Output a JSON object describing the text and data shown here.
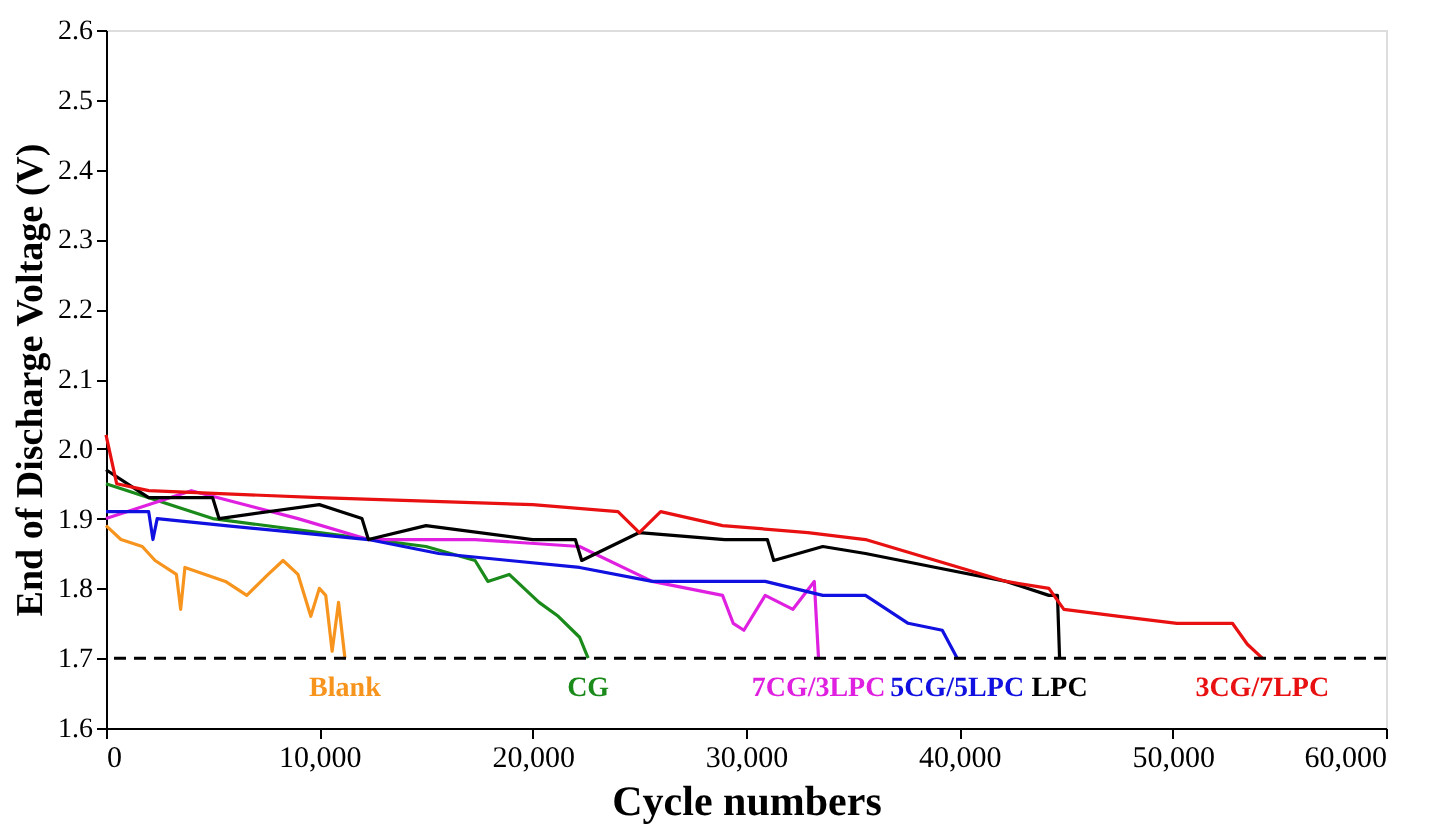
{
  "chart_data": {
    "type": "line",
    "xlabel": "Cycle numbers",
    "ylabel": "End of Discharge Voltage (V)",
    "xlim": [
      0,
      60000
    ],
    "ylim": [
      1.6,
      2.6
    ],
    "xticks": [
      0,
      {
        "value": 10000,
        "label": "10,000"
      },
      {
        "value": 20000,
        "label": "20,000"
      },
      {
        "value": 30000,
        "label": "30,000"
      },
      {
        "value": 40000,
        "label": "40,000"
      },
      {
        "value": 50000,
        "label": "50,000"
      },
      {
        "value": 60000,
        "label": "60,000"
      }
    ],
    "yticks": [
      {
        "value": 1.6,
        "label": "1.6"
      },
      {
        "value": 1.7,
        "label": "1.7"
      },
      {
        "value": 1.8,
        "label": "1.8"
      },
      {
        "value": 1.9,
        "label": "1.9"
      },
      {
        "value": 2.0,
        "label": "2.0"
      },
      {
        "value": 2.1,
        "label": "2.1"
      },
      {
        "value": 2.2,
        "label": "2.2"
      },
      {
        "value": 2.3,
        "label": "2.3"
      },
      {
        "value": 2.4,
        "label": "2.4"
      },
      {
        "value": 2.5,
        "label": "2.5"
      },
      {
        "value": 2.6,
        "label": "2.6"
      }
    ],
    "grid": false,
    "legend": false,
    "marker": "none",
    "line_style": "solid",
    "ref_lines": [
      {
        "axis": "y",
        "value": 1.7,
        "label": null,
        "color": "#000000",
        "line_style": "dashed"
      }
    ],
    "series": [
      {
        "name": "Blank",
        "color": "#f7941d",
        "x": [
          0,
          700,
          1700,
          2300,
          3300,
          3500,
          3700,
          5600,
          6600,
          7600,
          8300,
          9000,
          9600,
          10000,
          10300,
          10600,
          10900,
          11200
        ],
        "values": [
          1.89,
          1.87,
          1.86,
          1.84,
          1.82,
          1.77,
          1.83,
          1.81,
          1.79,
          1.82,
          1.84,
          1.82,
          1.76,
          1.8,
          1.79,
          1.71,
          1.78,
          1.7
        ]
      },
      {
        "name": "CG",
        "color": "#1a8a1a",
        "x": [
          0,
          5000,
          10000,
          15000,
          17300,
          17900,
          18900,
          20300,
          21200,
          22200,
          22600
        ],
        "values": [
          1.95,
          1.9,
          1.88,
          1.86,
          1.84,
          1.81,
          1.82,
          1.78,
          1.76,
          1.73,
          1.7
        ]
      },
      {
        "name": "7CG/3LPC",
        "color": "#e020e0",
        "x": [
          0,
          4000,
          9000,
          12300,
          17300,
          22200,
          25600,
          28900,
          29400,
          29900,
          30900,
          32200,
          33200,
          33400
        ],
        "values": [
          1.9,
          1.94,
          1.9,
          1.87,
          1.87,
          1.86,
          1.81,
          1.79,
          1.75,
          1.74,
          1.79,
          1.77,
          1.81,
          1.7
        ]
      },
      {
        "name": "5CG/5LPC",
        "color": "#1010e0",
        "x": [
          0,
          2000,
          2200,
          2400,
          5600,
          9000,
          12300,
          15600,
          18900,
          22200,
          25600,
          28900,
          30900,
          33600,
          35600,
          37600,
          39200,
          39900
        ],
        "values": [
          1.91,
          1.91,
          1.87,
          1.9,
          1.89,
          1.88,
          1.87,
          1.85,
          1.84,
          1.83,
          1.81,
          1.81,
          1.81,
          1.79,
          1.79,
          1.75,
          1.74,
          1.7
        ]
      },
      {
        "name": "LPC",
        "color": "#000000",
        "x": [
          0,
          2000,
          5000,
          5300,
          10000,
          12000,
          12300,
          15000,
          20000,
          22000,
          22300,
          25000,
          29000,
          31000,
          31300,
          33600,
          35600,
          38900,
          42200,
          44200,
          44600,
          44700
        ],
        "values": [
          1.97,
          1.93,
          1.93,
          1.9,
          1.92,
          1.9,
          1.87,
          1.89,
          1.87,
          1.87,
          1.84,
          1.88,
          1.87,
          1.87,
          1.84,
          1.86,
          1.85,
          1.83,
          1.81,
          1.79,
          1.79,
          1.7
        ]
      },
      {
        "name": "3CG/7LPC",
        "color": "#e81010",
        "x": [
          0,
          500,
          2000,
          10000,
          20000,
          24000,
          25000,
          26000,
          28900,
          32900,
          35600,
          38900,
          42200,
          44200,
          44900,
          47500,
          50200,
          52800,
          53500,
          54200
        ],
        "values": [
          2.02,
          1.95,
          1.94,
          1.93,
          1.92,
          1.91,
          1.88,
          1.91,
          1.89,
          1.88,
          1.87,
          1.84,
          1.81,
          1.8,
          1.77,
          1.76,
          1.75,
          1.75,
          1.72,
          1.7
        ]
      }
    ]
  }
}
